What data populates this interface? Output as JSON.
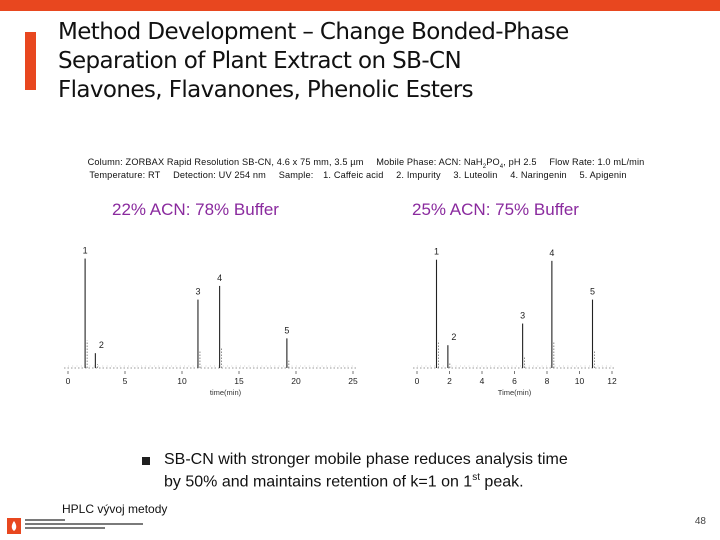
{
  "title": {
    "line1": "Method Development – Change Bonded-Phase",
    "line2": "Separation of Plant Extract on SB-CN",
    "line3": "Flavones, Flavanones, Phenolic Esters"
  },
  "conditions": {
    "column": "Column: ZORBAX Rapid Resolution SB-CN, 4.6 x 75 mm, 3.5 µm",
    "mobile_phase_prefix": "Mobile Phase: ACN: NaH",
    "mobile_phase_sub1": "2",
    "mobile_phase_mid": "PO",
    "mobile_phase_sub2": "4",
    "mobile_phase_suffix": ", pH 2.5",
    "flow_rate": "Flow Rate: 1.0 mL/min",
    "temperature": "Temperature: RT",
    "detection": "Detection: UV 254 nm",
    "sample_label": "Sample:",
    "samples": [
      "1. Caffeic acid",
      "2. Impurity",
      "3. Luteolin",
      "4. Naringenin",
      "5. Apigenin"
    ]
  },
  "chart_data": [
    {
      "type": "line",
      "title": "22% ACN: 78% Buffer",
      "xlabel": "time(min)",
      "xlim": [
        0,
        25
      ],
      "xticks": [
        0,
        5,
        10,
        15,
        20,
        25
      ],
      "ylim": [
        0,
        1
      ],
      "peaks": [
        {
          "label": "1",
          "time": 1.5,
          "height": 0.96
        },
        {
          "label": "2",
          "time": 2.4,
          "height": 0.13
        },
        {
          "label": "3",
          "time": 11.4,
          "height": 0.6
        },
        {
          "label": "4",
          "time": 13.3,
          "height": 0.72
        },
        {
          "label": "5",
          "time": 19.2,
          "height": 0.26
        }
      ]
    },
    {
      "type": "line",
      "title": "25% ACN: 75% Buffer",
      "xlabel": "Time(min)",
      "xlim": [
        0,
        12
      ],
      "xticks": [
        0,
        2,
        4,
        6,
        8,
        10,
        12
      ],
      "ylim": [
        0,
        1
      ],
      "peaks": [
        {
          "label": "1",
          "time": 1.2,
          "height": 0.95
        },
        {
          "label": "2",
          "time": 1.9,
          "height": 0.2
        },
        {
          "label": "3",
          "time": 6.5,
          "height": 0.39
        },
        {
          "label": "4",
          "time": 8.3,
          "height": 0.94
        },
        {
          "label": "5",
          "time": 10.8,
          "height": 0.6
        }
      ]
    }
  ],
  "bullet": {
    "text_before": "SB-CN with stronger mobile phase reduces analysis time by 50% and maintains retention of k=1 on 1",
    "superscript": "st",
    "text_after": " peak."
  },
  "footer": {
    "left_text": "HPLC vývoj metody",
    "page_number": "48"
  },
  "colors": {
    "accent": "#e8471f",
    "chart_title": "#8a2a9e"
  }
}
